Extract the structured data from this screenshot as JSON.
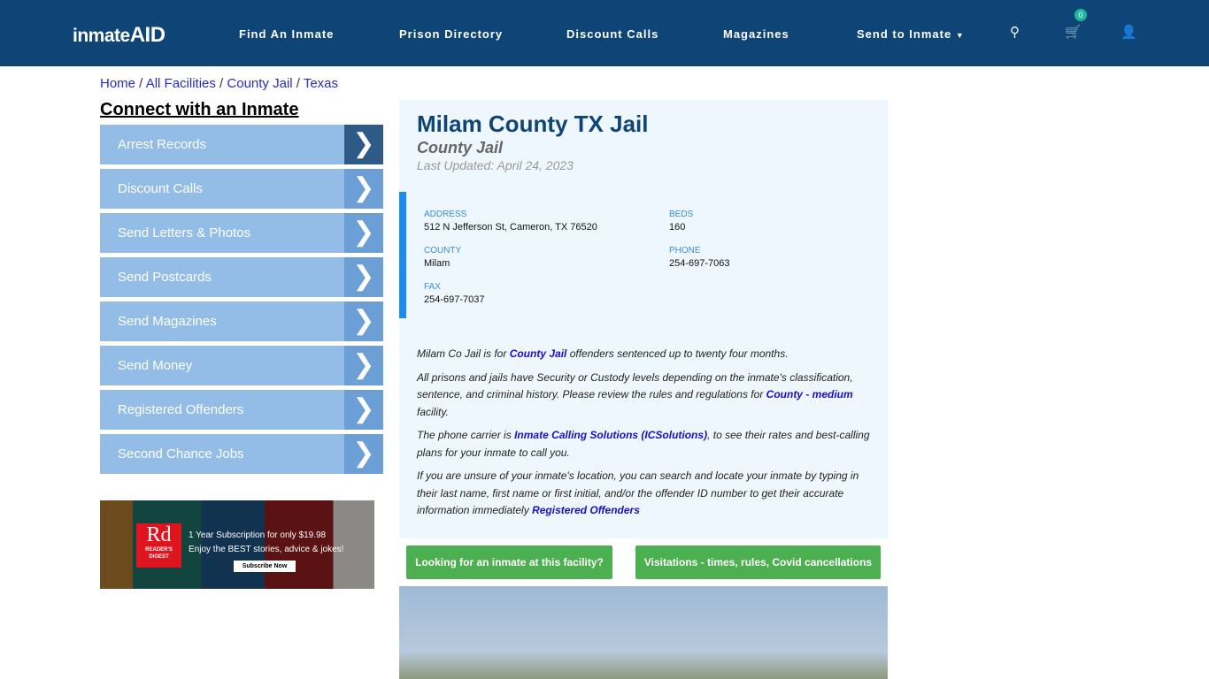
{
  "header": {
    "logo": "inmateAID",
    "nav": [
      "Find An Inmate",
      "Prison Directory",
      "Discount Calls",
      "Magazines",
      "Send to Inmate"
    ],
    "cart_count": "0",
    "icons": [
      "search-icon",
      "cart-icon",
      "user-icon"
    ]
  },
  "breadcrumb": [
    "Home",
    "All Facilities",
    "County Jail",
    "Texas"
  ],
  "sidebar": {
    "title": "Connect with an Inmate",
    "items": [
      "Arrest Records",
      "Discount Calls",
      "Send Letters & Photos",
      "Send Postcards",
      "Send Magazines",
      "Send Money",
      "Registered Offenders",
      "Second Chance Jobs"
    ]
  },
  "ad": {
    "brand": "Rd",
    "brand_sub": "READER'S DIGEST",
    "line1": "1 Year Subscription for only $19.98",
    "line2": "Enjoy the BEST stories, advice & jokes!",
    "button": "Subscribe Now"
  },
  "facility": {
    "name": "Milam County TX Jail",
    "type": "County Jail",
    "updated": "Last Updated: April 24, 2023",
    "address_label": "ADDRESS",
    "address": "512 N Jefferson St, Cameron, TX 76520",
    "beds_label": "BEDS",
    "beds": "160",
    "county_label": "COUNTY",
    "county": "Milam",
    "phone_label": "PHONE",
    "phone": "254-697-7063",
    "fax_label": "FAX",
    "fax": "254-697-7037"
  },
  "description": {
    "p1a": "Milam Co Jail is for ",
    "p1link": "County Jail",
    "p1b": " offenders sentenced up to twenty four months.",
    "p2a": "All prisons and jails have Security or Custody levels depending on the inmate's classification, sentence, and criminal history. Please review the rules and regulations for ",
    "p2link": "County - medium",
    "p2b": " facility.",
    "p3a": "The phone carrier is ",
    "p3link": "Inmate Calling Solutions (ICSolutions)",
    "p3b": ", to see their rates and best-calling plans for your inmate to call you.",
    "p4a": "If you are unsure of your inmate's location, you can search and locate your inmate by typing in their last name, first name or first initial, and/or the offender ID number to get their accurate information immediately ",
    "p4link": "Registered Offenders"
  },
  "buttons": {
    "find": "Looking for an inmate at this facility?",
    "visit": "Visitations - times, rules, Covid cancellations"
  },
  "colors": {
    "header": "#0e4476",
    "accent": "#1a8cf0",
    "green": "#4caf50",
    "sidebar": "#93bde7"
  }
}
